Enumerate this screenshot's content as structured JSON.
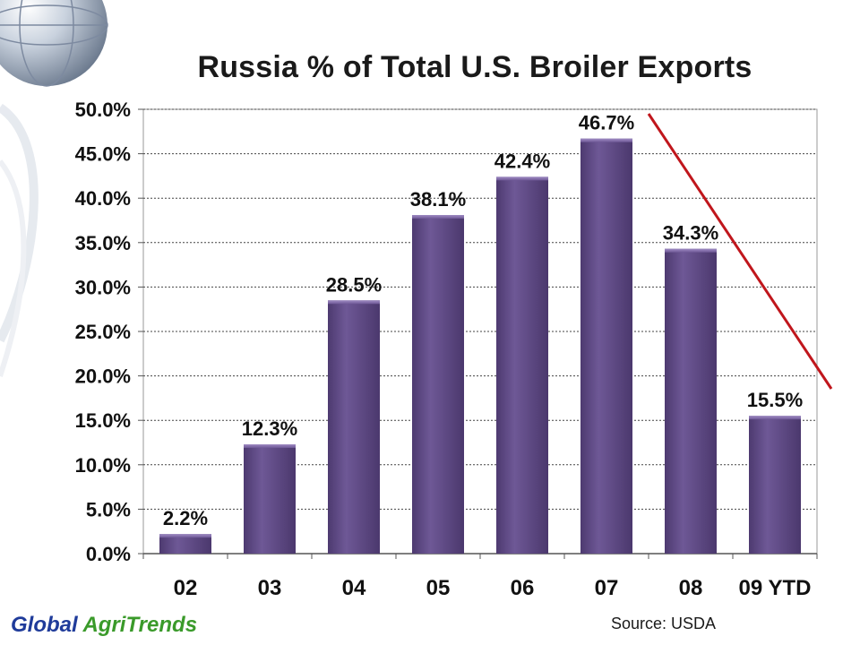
{
  "chart_data": {
    "type": "bar",
    "title": "Russia % of Total U.S. Broiler Exports",
    "categories": [
      "02",
      "03",
      "04",
      "05",
      "06",
      "07",
      "08",
      "09 YTD"
    ],
    "values": [
      2.2,
      12.3,
      28.5,
      38.1,
      42.4,
      46.7,
      34.3,
      15.5
    ],
    "value_labels": [
      "2.2%",
      "12.3%",
      "28.5%",
      "38.1%",
      "42.4%",
      "46.7%",
      "34.3%",
      "15.5%"
    ],
    "ylim": [
      0,
      50
    ],
    "yticks": [
      "0.0%",
      "5.0%",
      "10.0%",
      "15.0%",
      "20.0%",
      "25.0%",
      "30.0%",
      "35.0%",
      "40.0%",
      "45.0%",
      "50.0%"
    ],
    "grid": true,
    "bar_color": "#5f4a86",
    "trend_line_color": "#c0161c"
  },
  "footer": {
    "brand_part1": "Global",
    "brand_part2": "AgriTrends",
    "source": "Source:  USDA"
  }
}
